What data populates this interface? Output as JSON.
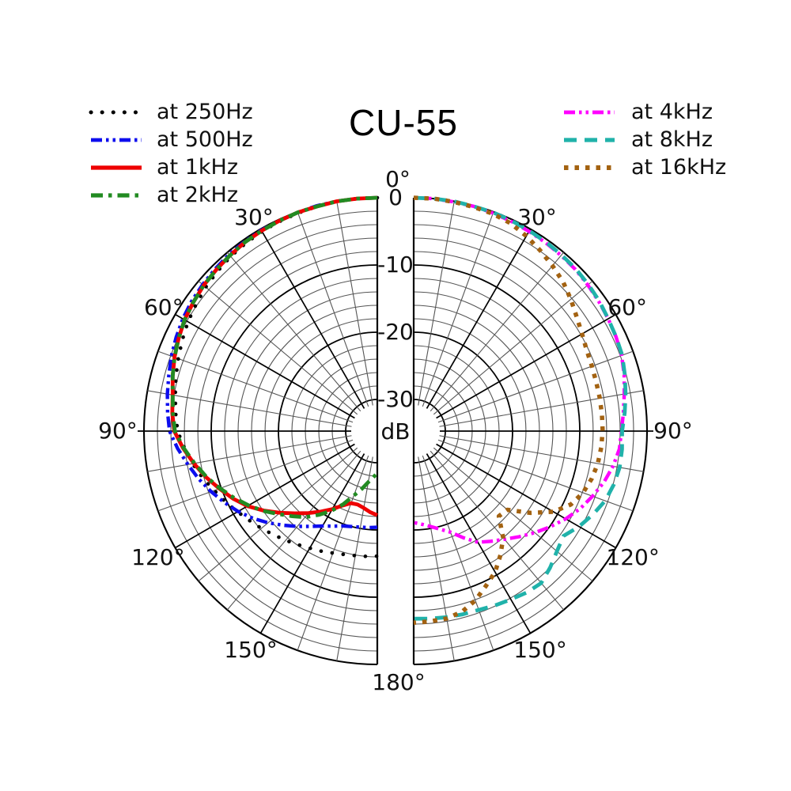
{
  "title": "CU-55",
  "legend_left": [
    {
      "label": "at 250Hz",
      "series": "250Hz"
    },
    {
      "label": "at 500Hz",
      "series": "500Hz"
    },
    {
      "label": "at 1kHz",
      "series": "1kHz"
    },
    {
      "label": "at 2kHz",
      "series": "2kHz"
    }
  ],
  "legend_right": [
    {
      "label": "at 4kHz",
      "series": "4kHz"
    },
    {
      "label": "at 8kHz",
      "series": "8kHz"
    },
    {
      "label": "at 16kHz",
      "series": "16kHz"
    }
  ],
  "axis": {
    "top_angle_label": "0°",
    "bottom_angle_label": "180°",
    "angle_tick_labels_left": [
      "30°",
      "60°",
      "90°",
      "120°",
      "150°"
    ],
    "angle_tick_labels_right": [
      "30°",
      "60°",
      "90°",
      "120°",
      "150°"
    ],
    "radial_tick_labels": [
      "0",
      "-10",
      "-20",
      "-30"
    ],
    "radial_unit_label": "dB"
  },
  "chart_data": {
    "type": "line",
    "subtype": "polar-pattern-half-circles",
    "title": "CU-55",
    "radial_unit": "dB",
    "radial_ticks": [
      0,
      -10,
      -20,
      -30
    ],
    "radial_axis_range": [
      0,
      -30
    ],
    "angle_range_deg": [
      0,
      180
    ],
    "grid": {
      "angle_minor_step_deg": 10,
      "angle_major_step_deg": 30,
      "radial_minor_step_db": 2,
      "radial_major_step_db": 10,
      "grid_on": true
    },
    "legend_position": "top-left and top-right, outside plot",
    "angles_deg": [
      0,
      5,
      10,
      15,
      20,
      25,
      30,
      35,
      40,
      45,
      50,
      55,
      60,
      65,
      70,
      75,
      80,
      85,
      90,
      95,
      100,
      105,
      110,
      115,
      120,
      125,
      130,
      135,
      140,
      145,
      150,
      155,
      160,
      165,
      170,
      175,
      180
    ],
    "series": [
      {
        "name": "250Hz",
        "label": "at 250Hz",
        "side": "left",
        "color": "#000000",
        "style": "dotted-round",
        "values_db": [
          0,
          0,
          0,
          -0.1,
          -0.2,
          -0.3,
          -0.4,
          -0.6,
          -0.8,
          -1.1,
          -1.4,
          -1.8,
          -2.2,
          -2.7,
          -3.2,
          -3.7,
          -4.2,
          -4.6,
          -5.0,
          -5.9,
          -6.8,
          -7.8,
          -8.9,
          -9.8,
          -10.7,
          -11.5,
          -12.2,
          -12.9,
          -13.5,
          -14.1,
          -14.6,
          -15.0,
          -15.4,
          -15.7,
          -15.9,
          -16.0,
          -16.1
        ]
      },
      {
        "name": "500Hz",
        "label": "at 500Hz",
        "side": "left",
        "color": "#0d0dee",
        "style": "dash-dot-dot",
        "values_db": [
          0,
          0,
          0,
          0,
          -0.1,
          -0.2,
          -0.2,
          -0.3,
          -0.4,
          -0.6,
          -0.8,
          -1.0,
          -1.3,
          -1.7,
          -2.1,
          -2.6,
          -3.0,
          -3.4,
          -3.8,
          -4.9,
          -6.1,
          -7.2,
          -8.4,
          -9.6,
          -10.8,
          -12.1,
          -13.5,
          -14.9,
          -16.2,
          -17.4,
          -18.4,
          -19.1,
          -19.7,
          -20.0,
          -20.2,
          -20.3,
          -20.4
        ]
      },
      {
        "name": "1kHz",
        "label": "at 1kHz",
        "side": "left",
        "color": "#ee0000",
        "style": "solid",
        "values_db": [
          0,
          0,
          0,
          -0.1,
          -0.1,
          -0.2,
          -0.3,
          -0.4,
          -0.6,
          -0.8,
          -1.0,
          -1.3,
          -1.6,
          -2.1,
          -2.6,
          -3.2,
          -3.8,
          -4.1,
          -4.5,
          -5.7,
          -7.0,
          -8.3,
          -9.7,
          -11.0,
          -12.4,
          -14.1,
          -15.8,
          -17.4,
          -18.8,
          -20.1,
          -21.3,
          -22.5,
          -23.3,
          -23.4,
          -23.1,
          -22.6,
          -22.2
        ]
      },
      {
        "name": "2kHz",
        "label": "at 2kHz",
        "side": "left",
        "color": "#228b22",
        "style": "dash-dot",
        "values_db": [
          0,
          0,
          0,
          -0.1,
          -0.1,
          -0.2,
          -0.3,
          -0.4,
          -0.6,
          -0.8,
          -1.0,
          -1.3,
          -1.6,
          -2.1,
          -2.6,
          -3.2,
          -3.8,
          -4.2,
          -4.6,
          -5.8,
          -7.1,
          -8.4,
          -9.8,
          -11.2,
          -12.6,
          -14.0,
          -15.5,
          -16.8,
          -18.0,
          -19.5,
          -21.0,
          -22.7,
          -24.5,
          -25.8,
          -27.0,
          -27.8,
          -28.5
        ]
      },
      {
        "name": "4kHz",
        "label": "at 4kHz",
        "side": "right",
        "color": "#ff00ff",
        "style": "dash-dot-dot",
        "values_db": [
          0,
          0,
          -0.1,
          -0.1,
          -0.2,
          -0.3,
          -0.4,
          -0.5,
          -0.6,
          -0.7,
          -0.9,
          -1.1,
          -1.3,
          -1.5,
          -1.8,
          -2.3,
          -2.9,
          -3.4,
          -3.8,
          -4.0,
          -4.6,
          -5.4,
          -6.4,
          -7.4,
          -8.6,
          -9.9,
          -11.2,
          -12.5,
          -13.7,
          -14.7,
          -15.6,
          -17.2,
          -18.7,
          -19.6,
          -20.3,
          -20.8,
          -21.1
        ]
      },
      {
        "name": "8kHz",
        "label": "at 8kHz",
        "side": "right",
        "color": "#20b2aa",
        "style": "dashed",
        "values_db": [
          0,
          0,
          0,
          -0.1,
          -0.1,
          -0.2,
          -0.3,
          -0.4,
          -0.5,
          -0.6,
          -0.8,
          -1.0,
          -1.3,
          -1.5,
          -1.7,
          -2.2,
          -2.7,
          -3.2,
          -3.7,
          -3.6,
          -3.6,
          -3.9,
          -4.4,
          -5.3,
          -6.3,
          -7.5,
          -6.9,
          -6.0,
          -5.2,
          -5.4,
          -5.8,
          -6.1,
          -6.4,
          -6.5,
          -6.6,
          -6.7,
          -6.8
        ]
      },
      {
        "name": "16kHz",
        "label": "at 16kHz",
        "side": "right",
        "color": "#a36211",
        "style": "square-dots",
        "values_db": [
          0,
          0,
          -0.1,
          -0.2,
          -0.3,
          -0.6,
          -1.2,
          -1.9,
          -2.6,
          -3.3,
          -4.2,
          -5.1,
          -5.8,
          -6.3,
          -6.5,
          -6.6,
          -6.6,
          -6.6,
          -6.6,
          -6.7,
          -6.9,
          -7.3,
          -7.9,
          -8.9,
          -10.7,
          -13.5,
          -16.5,
          -16.8,
          -14.0,
          -12.2,
          -10.5,
          -9.3,
          -7.9,
          -6.9,
          -6.4,
          -6.3,
          -6.2
        ]
      }
    ]
  }
}
